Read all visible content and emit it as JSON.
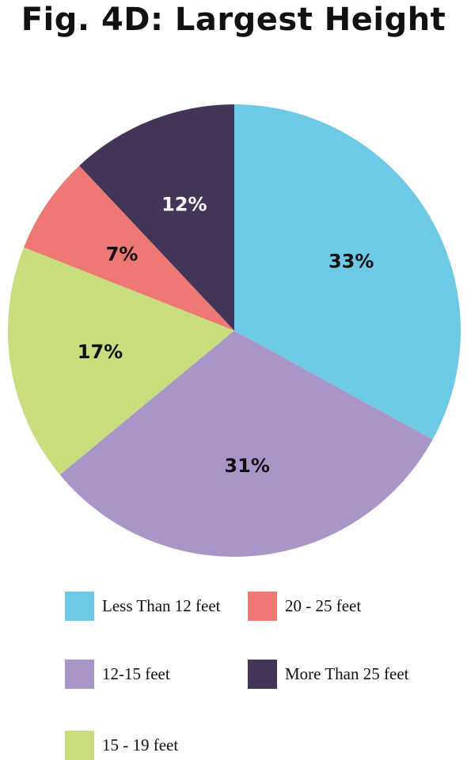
{
  "title": "Fig. 4D: Largest Height",
  "chart_data": {
    "type": "pie",
    "title": "Fig. 4D: Largest Height",
    "slices": [
      {
        "label": "Less Than 12 feet",
        "value": 33,
        "display": "33%",
        "color": "#6dc9e4",
        "text_color": "#111111"
      },
      {
        "label": "12-15 feet",
        "value": 31,
        "display": "31%",
        "color": "#a995c8",
        "text_color": "#111111"
      },
      {
        "label": "15 - 19 feet",
        "value": 17,
        "display": "17%",
        "color": "#c7dd7e",
        "text_color": "#111111"
      },
      {
        "label": "20 - 25 feet",
        "value": 7,
        "display": "7%",
        "color": "#ee7874",
        "text_color": "#111111"
      },
      {
        "label": "More Than 25 feet",
        "value": 12,
        "display": "12%",
        "color": "#433557",
        "text_color": "#ffffff"
      }
    ],
    "legend": [
      {
        "label": "Less Than 12 feet",
        "color": "#6dc9e4"
      },
      {
        "label": "20 - 25 feet",
        "color": "#ee7874"
      },
      {
        "label": "12-15 feet",
        "color": "#a995c8"
      },
      {
        "label": "More Than 25 feet",
        "color": "#433557"
      },
      {
        "label": "15 - 19 feet",
        "color": "#c7dd7e"
      }
    ],
    "start_angle_deg": 0,
    "direction": "clockwise",
    "legend_position": "bottom"
  }
}
